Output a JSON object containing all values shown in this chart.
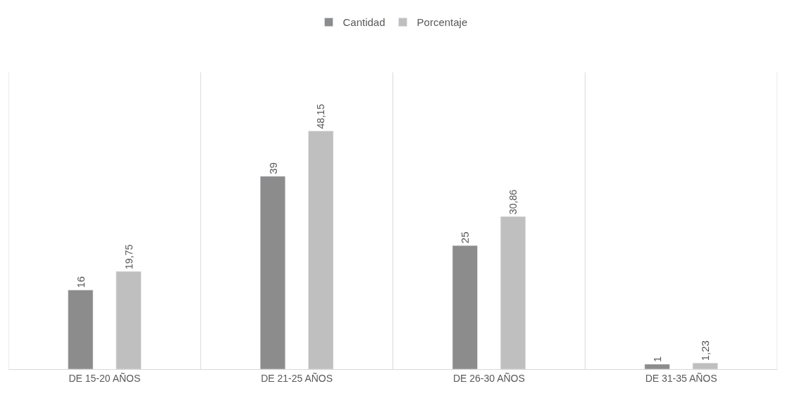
{
  "chart_data": {
    "type": "bar",
    "categories": [
      "DE 15-20 AÑOS",
      "DE 21-25 AÑOS",
      "DE 26-30 AÑOS",
      "DE 31-35 AÑOS"
    ],
    "series": [
      {
        "name": "Cantidad",
        "color": "#8c8c8c",
        "values": [
          16,
          39,
          25,
          1
        ],
        "value_labels": [
          "16",
          "39",
          "25",
          "1"
        ]
      },
      {
        "name": "Porcentaje",
        "color": "#bfbfbf",
        "values": [
          19.75,
          48.15,
          30.86,
          1.23
        ],
        "value_labels": [
          "19,75",
          "48,15",
          "30,86",
          "1,23"
        ]
      }
    ],
    "ylim": [
      0,
      60
    ],
    "grid": "x",
    "legend": "top"
  }
}
